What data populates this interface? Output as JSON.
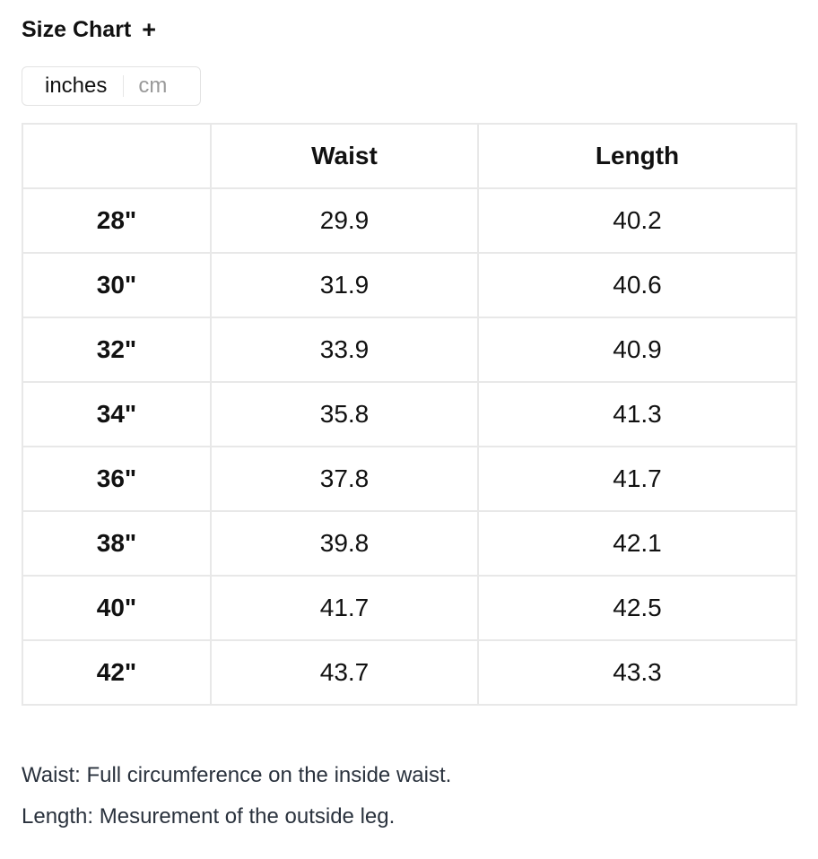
{
  "title": "Size Chart",
  "expand_icon": "plus-icon",
  "expand_label": "+",
  "units": {
    "options": [
      "inches",
      "cm"
    ],
    "selected": "inches"
  },
  "table": {
    "headers": [
      "",
      "Waist",
      "Length"
    ],
    "rows": [
      [
        "28\"",
        "29.9",
        "40.2"
      ],
      [
        "30\"",
        "31.9",
        "40.6"
      ],
      [
        "32\"",
        "33.9",
        "40.9"
      ],
      [
        "34\"",
        "35.8",
        "41.3"
      ],
      [
        "36\"",
        "37.8",
        "41.7"
      ],
      [
        "38\"",
        "39.8",
        "42.1"
      ],
      [
        "40\"",
        "41.7",
        "42.5"
      ],
      [
        "42\"",
        "43.7",
        "43.3"
      ]
    ]
  },
  "notes": [
    "Waist: Full circumference on the inside waist.",
    "Length: Mesurement of the outside leg."
  ]
}
